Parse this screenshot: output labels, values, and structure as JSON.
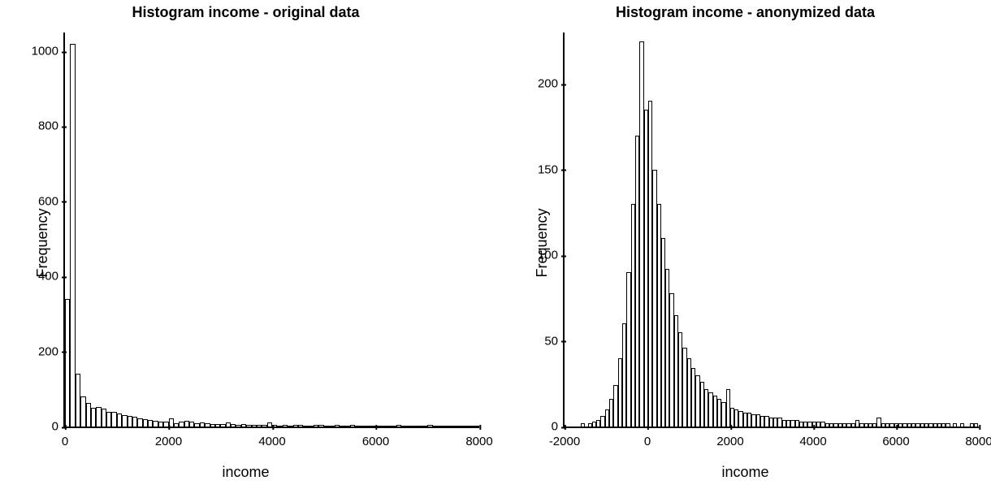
{
  "left_chart": {
    "type": "histogram",
    "title": "Histogram income - original data",
    "xlabel": "income",
    "ylabel": "Frequency",
    "xlim": [
      0,
      8000
    ],
    "ylim": [
      0,
      1050
    ],
    "xticks": [
      0,
      2000,
      4000,
      6000,
      8000
    ],
    "yticks": [
      0,
      200,
      400,
      600,
      800,
      1000
    ],
    "bar_color": "#ffffff",
    "bar_border_color": "#000000",
    "background_color": "#ffffff",
    "title_fontsize": 18,
    "label_fontsize": 18,
    "tick_fontsize": 15,
    "bin_width": 100,
    "values": [
      340,
      1020,
      140,
      80,
      62,
      50,
      52,
      48,
      40,
      38,
      35,
      30,
      28,
      25,
      22,
      20,
      18,
      16,
      14,
      12,
      22,
      8,
      14,
      16,
      12,
      8,
      10,
      8,
      6,
      6,
      7,
      10,
      6,
      5,
      6,
      5,
      4,
      4,
      5,
      10,
      5,
      3,
      5,
      3,
      5,
      5,
      3,
      2,
      4,
      4,
      3,
      3,
      4,
      3,
      3,
      4,
      3,
      2,
      3,
      2,
      2,
      3,
      2,
      2,
      4,
      2,
      2,
      2,
      2,
      2,
      5,
      2,
      2,
      2,
      3,
      2,
      3,
      2,
      2,
      2
    ]
  },
  "right_chart": {
    "type": "histogram",
    "title": "Histogram income - anonymized data",
    "xlabel": "income",
    "ylabel": "Frequency",
    "xlim": [
      -2000,
      8000
    ],
    "ylim": [
      0,
      230
    ],
    "xticks": [
      -2000,
      0,
      2000,
      4000,
      6000,
      8000
    ],
    "yticks": [
      0,
      50,
      100,
      150,
      200
    ],
    "bar_color": "#ffffff",
    "bar_border_color": "#000000",
    "background_color": "#ffffff",
    "title_fontsize": 18,
    "label_fontsize": 18,
    "tick_fontsize": 15,
    "bin_width": 100,
    "values": [
      0,
      0,
      0,
      0,
      0,
      0,
      2,
      0,
      2,
      3,
      4,
      6,
      10,
      16,
      24,
      40,
      60,
      90,
      130,
      170,
      225,
      185,
      190,
      150,
      130,
      110,
      92,
      78,
      65,
      55,
      46,
      40,
      34,
      30,
      26,
      22,
      20,
      18,
      16,
      14,
      22,
      11,
      10,
      9,
      8,
      8,
      7,
      7,
      6,
      6,
      5,
      5,
      5,
      4,
      4,
      4,
      4,
      3,
      3,
      3,
      3,
      3,
      3,
      2,
      2,
      2,
      2,
      2,
      2,
      2,
      4,
      2,
      2,
      2,
      2,
      5,
      2,
      2,
      2,
      2,
      2,
      2,
      2,
      2,
      2,
      2,
      2,
      2,
      2,
      2,
      2,
      2,
      0,
      2,
      0,
      2,
      0,
      0,
      2,
      2
    ]
  }
}
